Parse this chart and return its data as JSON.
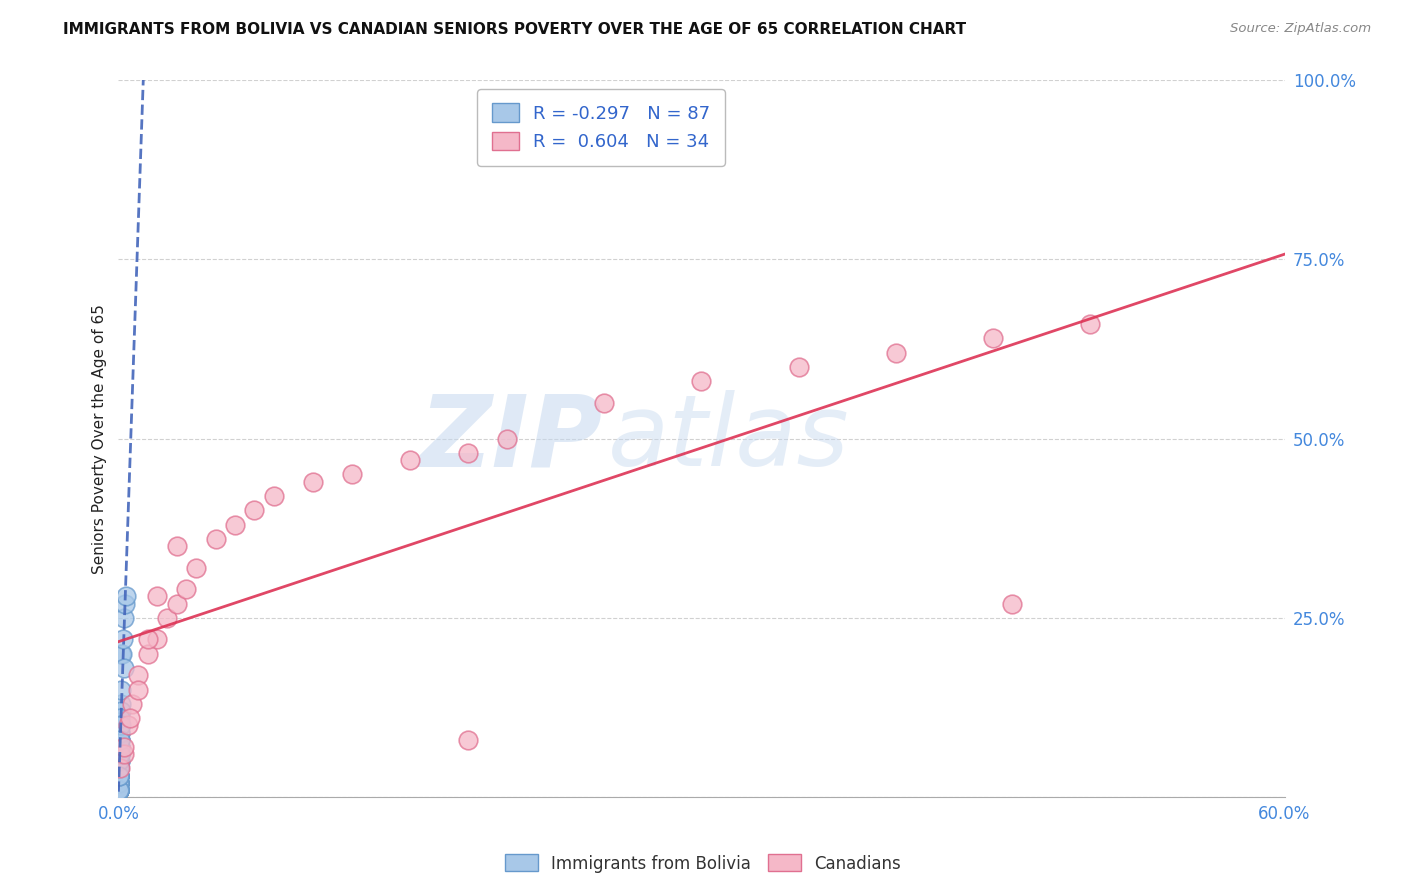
{
  "title": "IMMIGRANTS FROM BOLIVIA VS CANADIAN SENIORS POVERTY OVER THE AGE OF 65 CORRELATION CHART",
  "source": "Source: ZipAtlas.com",
  "ylabel": "Seniors Poverty Over the Age of 65",
  "blue_R": -0.297,
  "blue_N": 87,
  "pink_R": 0.604,
  "pink_N": 34,
  "blue_color": "#a8c8e8",
  "blue_edge_color": "#6699cc",
  "pink_color": "#f5b8c8",
  "pink_edge_color": "#e07090",
  "blue_line_color": "#4466bb",
  "pink_line_color": "#dd3355",
  "x_min": 0.0,
  "x_max": 0.6,
  "y_min": 0.0,
  "y_max": 1.0,
  "watermark_zip": "ZIP",
  "watermark_atlas": "atlas",
  "figsize": [
    14.06,
    8.92
  ],
  "dpi": 100,
  "blue_scatter_x": [
    0.0005,
    0.0008,
    0.001,
    0.0012,
    0.0015,
    0.0005,
    0.0007,
    0.0009,
    0.0006,
    0.0004,
    0.0003,
    0.0002,
    0.0006,
    0.0008,
    0.001,
    0.0012,
    0.0003,
    0.0004,
    0.0005,
    0.0007,
    0.0009,
    0.001,
    0.0002,
    0.0003,
    0.0004,
    0.0005,
    0.0006,
    0.0002,
    0.0003,
    0.0004,
    0.0002,
    0.0003,
    0.0004,
    0.0005,
    0.0002,
    0.0003,
    0.0004,
    0.0001,
    0.0002,
    0.0001,
    0.0002,
    0.0003,
    0.0001,
    0.0002,
    0.0003,
    0.0001,
    0.0002,
    0.0001,
    0.0002,
    0.0001,
    0.0001,
    0.0002,
    0.0003,
    0.0001,
    0.0002,
    0.0001,
    0.0001,
    0.0002,
    0.0001,
    0.0002,
    0.0001,
    0.0001,
    0.0002,
    0.0001,
    0.0001,
    0.0001,
    0.0001,
    0.0002,
    0.0001,
    0.0001,
    0.0003,
    0.0004,
    0.0005,
    0.0006,
    0.0008,
    0.001,
    0.0015,
    0.002,
    0.0025,
    0.003,
    0.0035,
    0.004,
    0.003,
    0.0015,
    0.0008,
    0.0005,
    0.001
  ],
  "blue_scatter_y": [
    0.05,
    0.08,
    0.1,
    0.13,
    0.2,
    0.04,
    0.06,
    0.07,
    0.05,
    0.04,
    0.03,
    0.02,
    0.05,
    0.07,
    0.09,
    0.12,
    0.03,
    0.04,
    0.05,
    0.06,
    0.08,
    0.1,
    0.02,
    0.03,
    0.04,
    0.05,
    0.06,
    0.02,
    0.03,
    0.04,
    0.02,
    0.03,
    0.04,
    0.05,
    0.02,
    0.03,
    0.04,
    0.01,
    0.02,
    0.01,
    0.02,
    0.03,
    0.01,
    0.02,
    0.03,
    0.01,
    0.02,
    0.01,
    0.02,
    0.01,
    0.01,
    0.02,
    0.03,
    0.01,
    0.02,
    0.01,
    0.01,
    0.02,
    0.01,
    0.02,
    0.01,
    0.01,
    0.02,
    0.01,
    0.01,
    0.01,
    0.01,
    0.02,
    0.01,
    0.01,
    0.03,
    0.04,
    0.05,
    0.07,
    0.09,
    0.11,
    0.15,
    0.2,
    0.22,
    0.25,
    0.27,
    0.28,
    0.18,
    0.1,
    0.06,
    0.03,
    0.08
  ],
  "pink_scatter_x": [
    0.001,
    0.003,
    0.005,
    0.007,
    0.01,
    0.015,
    0.02,
    0.025,
    0.03,
    0.035,
    0.04,
    0.05,
    0.06,
    0.07,
    0.08,
    0.1,
    0.12,
    0.15,
    0.18,
    0.2,
    0.25,
    0.3,
    0.35,
    0.4,
    0.45,
    0.5,
    0.003,
    0.006,
    0.01,
    0.015,
    0.02,
    0.03,
    0.46,
    0.18
  ],
  "pink_scatter_y": [
    0.04,
    0.06,
    0.1,
    0.13,
    0.17,
    0.2,
    0.22,
    0.25,
    0.27,
    0.29,
    0.32,
    0.36,
    0.38,
    0.4,
    0.42,
    0.44,
    0.45,
    0.47,
    0.48,
    0.5,
    0.55,
    0.58,
    0.6,
    0.62,
    0.64,
    0.66,
    0.07,
    0.11,
    0.15,
    0.22,
    0.28,
    0.35,
    0.27,
    0.08
  ]
}
